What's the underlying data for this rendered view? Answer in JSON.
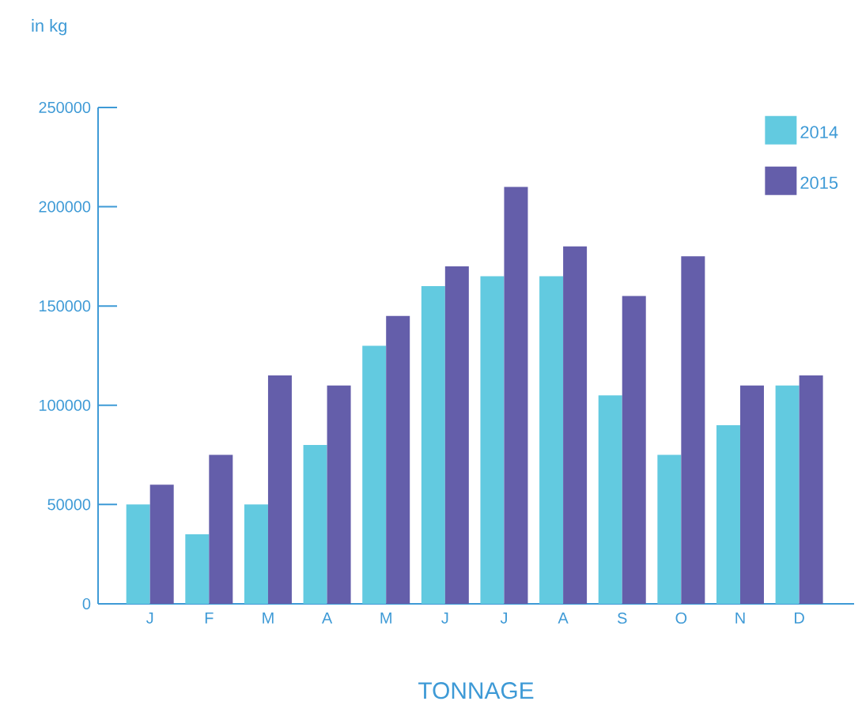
{
  "chart_data": {
    "type": "bar",
    "xlabel": "TONNAGE",
    "ylabel": "in kg",
    "categories": [
      "J",
      "F",
      "M",
      "A",
      "M",
      "J",
      "J",
      "A",
      "S",
      "O",
      "N",
      "D"
    ],
    "series": [
      {
        "name": "2014",
        "color": "#62cae0",
        "values": [
          50000,
          35000,
          50000,
          80000,
          130000,
          160000,
          165000,
          165000,
          105000,
          75000,
          90000,
          110000
        ]
      },
      {
        "name": "2015",
        "color": "#645eaa",
        "values": [
          60000,
          75000,
          115000,
          110000,
          145000,
          170000,
          210000,
          180000,
          155000,
          175000,
          110000,
          115000
        ]
      }
    ],
    "ylim": [
      0,
      250000
    ],
    "yticks": [
      0,
      50000,
      100000,
      150000,
      200000,
      250000
    ],
    "legend": "top right",
    "grid": false
  }
}
